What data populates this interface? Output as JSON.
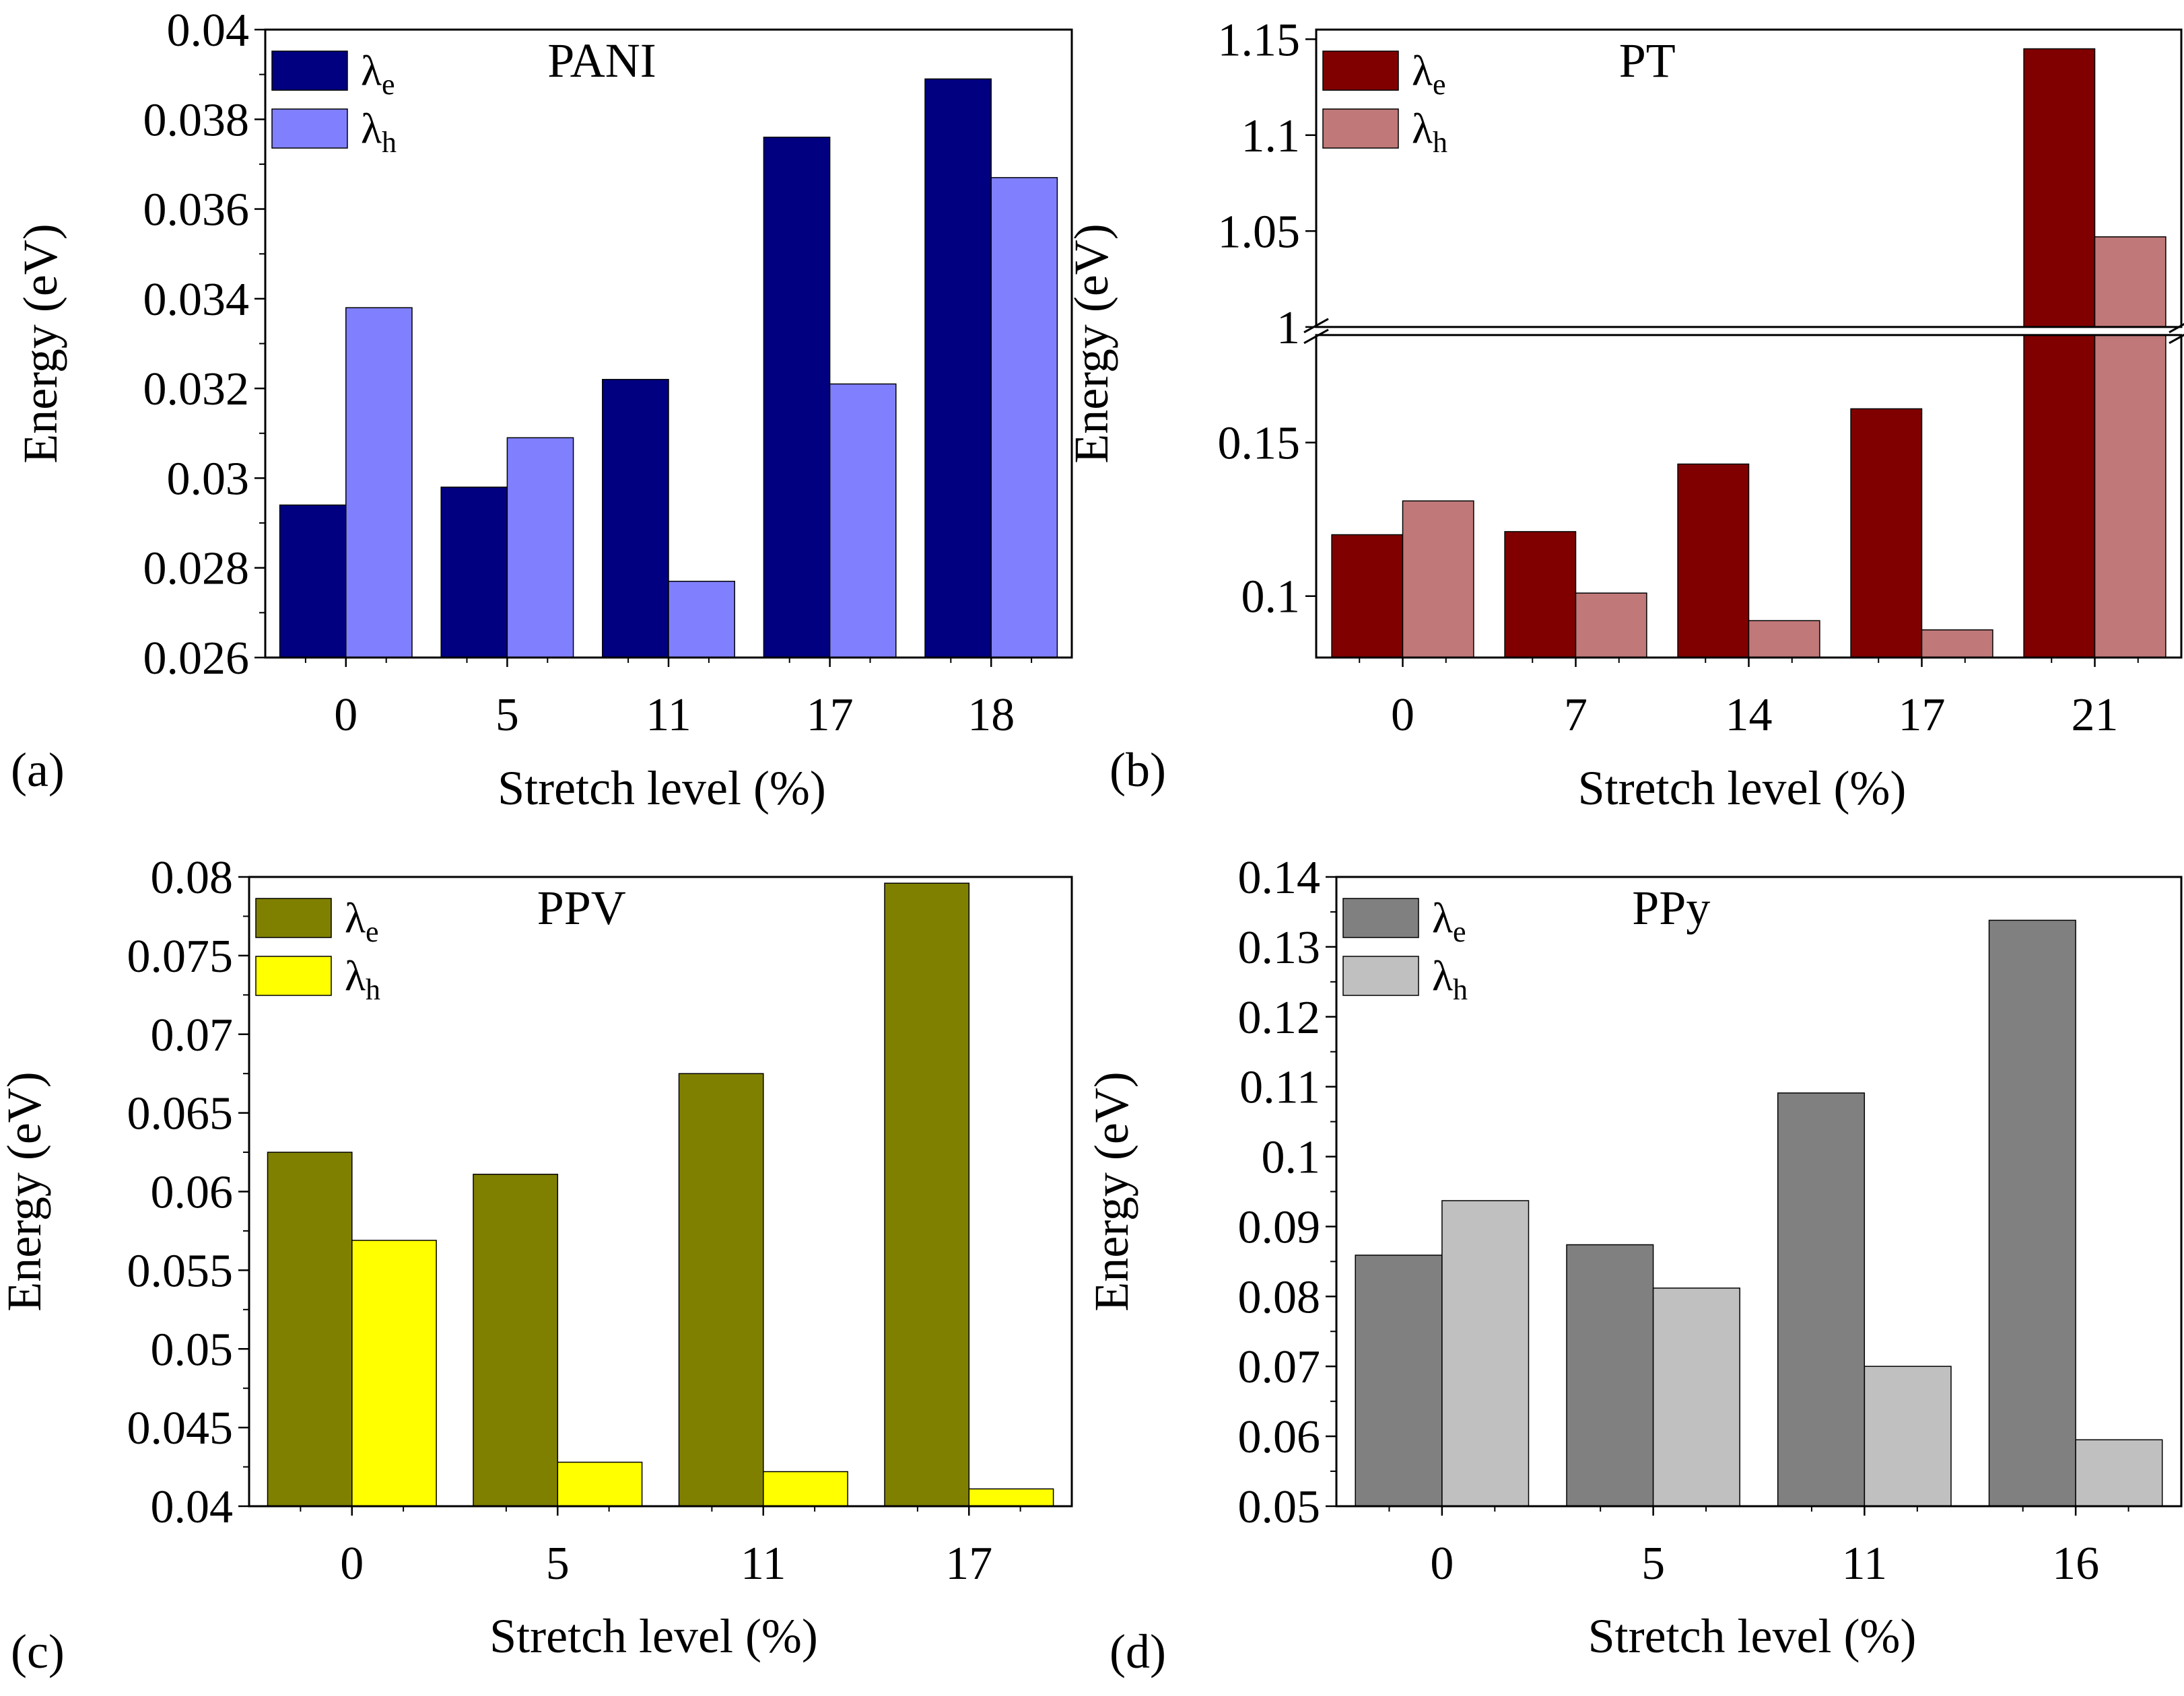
{
  "chart_data": [
    {
      "type": "bar",
      "panel_letter": "(a)",
      "title": "PANI",
      "xlabel": "Stretch level (%)",
      "ylabel": "Energy (eV)",
      "categories": [
        "0",
        "5",
        "11",
        "17",
        "18"
      ],
      "ylim": [
        0.026,
        0.04
      ],
      "yticks": [
        0.026,
        0.028,
        0.03,
        0.032,
        0.034,
        0.036,
        0.038,
        0.04
      ],
      "ytick_labels": [
        "0.026",
        "0.028",
        "0.03",
        "0.032",
        "0.034",
        "0.036",
        "0.038",
        "0.04"
      ],
      "legend_position": "top-left",
      "series": [
        {
          "name": "λe",
          "symbol": "λ",
          "subscript": "e",
          "color": "#000080",
          "values": [
            0.0294,
            0.0298,
            0.0322,
            0.0376,
            0.0389
          ]
        },
        {
          "name": "λh",
          "symbol": "λ",
          "subscript": "h",
          "color": "#8080ff",
          "values": [
            0.0338,
            0.0309,
            0.0277,
            0.0321,
            0.0367
          ]
        }
      ]
    },
    {
      "type": "bar",
      "panel_letter": "(b)",
      "title": "PT",
      "xlabel": "Stretch level (%)",
      "ylabel": "Energy (eV)",
      "categories": [
        "0",
        "7",
        "14",
        "17",
        "21"
      ],
      "broken_axis": true,
      "ylim_lower": [
        0.08,
        0.185
      ],
      "ylim_upper": [
        1.0,
        1.155
      ],
      "yticks_lower": [
        0.1,
        0.15
      ],
      "ytick_labels_lower": [
        "0.1",
        "0.15"
      ],
      "yticks_upper": [
        1.0,
        1.05,
        1.1,
        1.15
      ],
      "ytick_labels_upper": [
        "1",
        "1.05",
        "1.1",
        "1.15"
      ],
      "legend_position": "top-left",
      "series": [
        {
          "name": "λe",
          "symbol": "λ",
          "subscript": "e",
          "color": "#800000",
          "values": [
            0.12,
            0.121,
            0.143,
            0.161,
            1.145
          ]
        },
        {
          "name": "λh",
          "symbol": "λ",
          "subscript": "h",
          "color": "#c07878",
          "values": [
            0.131,
            0.101,
            0.092,
            0.089,
            1.047
          ]
        }
      ]
    },
    {
      "type": "bar",
      "panel_letter": "(c)",
      "title": "PPV",
      "xlabel": "Stretch level (%)",
      "ylabel": "Energy (eV)",
      "categories": [
        "0",
        "5",
        "11",
        "17"
      ],
      "ylim": [
        0.04,
        0.08
      ],
      "yticks": [
        0.04,
        0.045,
        0.05,
        0.055,
        0.06,
        0.065,
        0.07,
        0.075,
        0.08
      ],
      "ytick_labels": [
        "0.04",
        "0.045",
        "0.05",
        "0.055",
        "0.06",
        "0.065",
        "0.07",
        "0.075",
        "0.08"
      ],
      "legend_position": "top-left",
      "series": [
        {
          "name": "λe",
          "symbol": "λ",
          "subscript": "e",
          "color": "#808000",
          "values": [
            0.0625,
            0.0611,
            0.0675,
            0.0796
          ]
        },
        {
          "name": "λh",
          "symbol": "λ",
          "subscript": "h",
          "color": "#ffff00",
          "values": [
            0.0569,
            0.0428,
            0.0422,
            0.0411
          ]
        }
      ]
    },
    {
      "type": "bar",
      "panel_letter": "(d)",
      "title": "PPy",
      "xlabel": "Stretch level (%)",
      "ylabel": "Energy (eV)",
      "categories": [
        "0",
        "5",
        "11",
        "16"
      ],
      "ylim": [
        0.05,
        0.14
      ],
      "yticks": [
        0.05,
        0.06,
        0.07,
        0.08,
        0.09,
        0.1,
        0.11,
        0.12,
        0.13,
        0.14
      ],
      "ytick_labels": [
        "0.05",
        "0.06",
        "0.07",
        "0.08",
        "0.09",
        "0.1",
        "0.11",
        "0.12",
        "0.13",
        "0.14"
      ],
      "legend_position": "top-left",
      "series": [
        {
          "name": "λe",
          "symbol": "λ",
          "subscript": "e",
          "color": "#808080",
          "values": [
            0.0859,
            0.0874,
            0.1091,
            0.1338
          ]
        },
        {
          "name": "λh",
          "symbol": "λ",
          "subscript": "h",
          "color": "#c0c0c0",
          "values": [
            0.0937,
            0.0812,
            0.07,
            0.0595
          ]
        }
      ]
    }
  ]
}
